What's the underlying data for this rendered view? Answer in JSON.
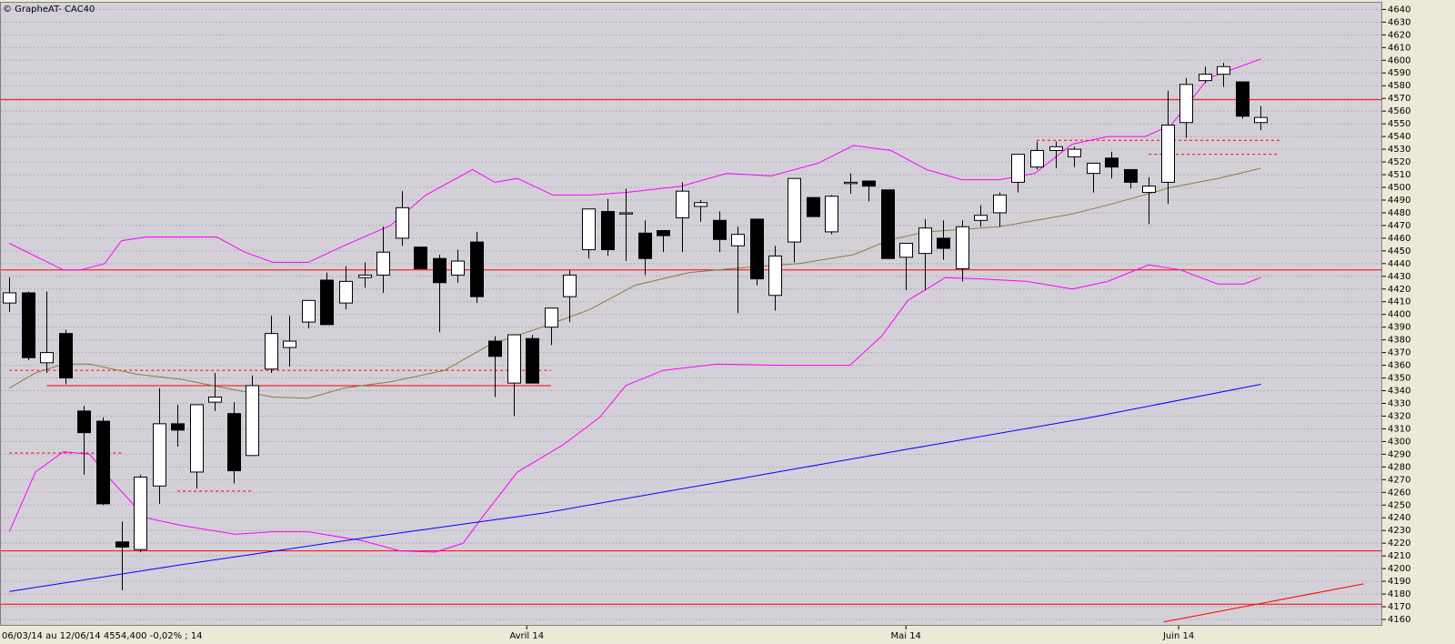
{
  "chart_data": {
    "type": "candlestick",
    "title": "© GrapheAT- CAC40",
    "footer": "06/03/14 au 12/06/14  4554,400  -0,02% ; 14",
    "ylim": [
      4155,
      4646
    ],
    "xlim": [
      -0.5,
      73.5
    ],
    "yticks": [
      4160,
      4170,
      4180,
      4190,
      4200,
      4210,
      4220,
      4230,
      4240,
      4250,
      4260,
      4270,
      4280,
      4290,
      4300,
      4310,
      4320,
      4330,
      4340,
      4350,
      4360,
      4370,
      4380,
      4390,
      4400,
      4410,
      4420,
      4430,
      4440,
      4450,
      4460,
      4470,
      4480,
      4490,
      4500,
      4510,
      4520,
      4530,
      4540,
      4550,
      4560,
      4570,
      4580,
      4590,
      4600,
      4610,
      4620,
      4630,
      4640
    ],
    "xticks": [
      {
        "value": 27.7,
        "label": "Avril 14"
      },
      {
        "value": 48,
        "label": "Mai 14"
      },
      {
        "value": 62.6,
        "label": "Juin 14"
      }
    ],
    "grid": true,
    "up_color": "#ffffff",
    "down_color": "#000000",
    "open": [
      4409,
      4417,
      4362,
      4385,
      4324,
      4316,
      4221,
      4215,
      4265,
      4314,
      4276,
      4331,
      4322,
      4289,
      4357,
      4374,
      4394,
      4427,
      4409,
      4429,
      4431,
      4460,
      4453,
      4444,
      4431,
      4457,
      4379,
      4346,
      4381,
      4390,
      4414,
      4451,
      4481,
      4479,
      4464,
      4466,
      4476,
      4485,
      4474,
      4454,
      4475,
      4415,
      4457,
      4492,
      4465,
      4503,
      4505,
      4498,
      4445,
      4448,
      4460,
      4436,
      4474,
      4480,
      4504,
      4516,
      4529,
      4524,
      4511,
      4523,
      4514,
      4496,
      4504,
      4551,
      4584,
      4589,
      4583,
      4551
    ],
    "high": [
      4429,
      4418,
      4418,
      4388,
      4328,
      4319,
      4237,
      4274,
      4342,
      4329,
      4329,
      4354,
      4331,
      4352,
      4399,
      4399,
      4411,
      4433,
      4438,
      4441,
      4469,
      4497,
      4453,
      4447,
      4451,
      4465,
      4383,
      4384,
      4384,
      4405,
      4435,
      4483,
      4491,
      4499,
      4474,
      4466,
      4504,
      4490,
      4481,
      4469,
      4475,
      4454,
      4507,
      4492,
      4494,
      4511,
      4505,
      4498,
      4456,
      4475,
      4474,
      4474,
      4486,
      4496,
      4526,
      4536,
      4536,
      4532,
      4519,
      4528,
      4514,
      4508,
      4576,
      4586,
      4595,
      4598,
      4583,
      4564
    ],
    "low": [
      4402,
      4364,
      4354,
      4345,
      4274,
      4250,
      4183,
      4213,
      4251,
      4296,
      4263,
      4324,
      4267,
      4289,
      4354,
      4359,
      4389,
      4392,
      4404,
      4421,
      4417,
      4454,
      4436,
      4386,
      4425,
      4409,
      4335,
      4320,
      4346,
      4376,
      4394,
      4444,
      4446,
      4442,
      4431,
      4449,
      4449,
      4473,
      4449,
      4401,
      4423,
      4403,
      4441,
      4477,
      4463,
      4495,
      4489,
      4444,
      4419,
      4419,
      4443,
      4426,
      4469,
      4469,
      4496,
      4514,
      4515,
      4516,
      4496,
      4507,
      4499,
      4471,
      4487,
      4539,
      4582,
      4579,
      4554,
      4545
    ],
    "close": [
      4417,
      4366,
      4370,
      4350,
      4307,
      4251,
      4217,
      4272,
      4314,
      4309,
      4329,
      4335,
      4277,
      4344,
      4385,
      4379,
      4411,
      4392,
      4426,
      4431,
      4449,
      4484,
      4436,
      4425,
      4442,
      4414,
      4367,
      4384,
      4346,
      4405,
      4431,
      4483,
      4451,
      4480,
      4444,
      4462,
      4497,
      4488,
      4459,
      4463,
      4428,
      4446,
      4507,
      4477,
      4493,
      4504,
      4501,
      4444,
      4456,
      4468,
      4452,
      4469,
      4478,
      4494,
      4526,
      4529,
      4532,
      4530,
      4519,
      4516,
      4504,
      4501,
      4549,
      4581,
      4589,
      4595,
      4556,
      4555
    ],
    "levels": [
      {
        "value": 4569,
        "color": "#ff0000"
      },
      {
        "value": 4435,
        "color": "#ff0000"
      },
      {
        "value": 4214,
        "color": "#ff0000"
      },
      {
        "value": 4172,
        "color": "#ff0000"
      },
      {
        "value": 4344,
        "color": "#ff0000",
        "x": [
          2,
          29
        ]
      },
      {
        "value": 4356,
        "color": "#ff0000",
        "x": [
          0,
          29
        ],
        "dashed": true
      },
      {
        "value": 4291,
        "color": "#ff0000",
        "x": [
          0,
          6
        ],
        "dashed": true
      },
      {
        "value": 4261,
        "color": "#ff0000",
        "x": [
          9,
          13
        ],
        "dashed": true
      },
      {
        "value": 4537,
        "color": "#ff0000",
        "x": [
          55,
          68
        ],
        "dashed": true
      },
      {
        "value": 4526,
        "color": "#ff0000",
        "x": [
          61,
          68
        ],
        "dashed": true
      }
    ],
    "overlays": [
      {
        "color": "#ff00ff",
        "x": [
          0,
          2.9,
          3.8,
          5.1,
          6,
          7.3,
          11.1,
          12.6,
          14.1,
          16,
          17.9,
          20.4,
          22.3,
          24.8,
          26,
          27.2,
          29.1,
          31.1,
          33,
          36,
          38.4,
          40.8,
          43.3,
          45.2,
          47.2,
          49.1,
          51,
          53,
          54.9,
          56.9,
          58.8,
          60.8,
          62.2,
          64.2,
          67
        ],
        "values": [
          4456,
          4435,
          4435,
          4440,
          4458,
          4461,
          4461,
          4449,
          4441,
          4441,
          4454,
          4470,
          4494,
          4514,
          4504,
          4507,
          4494,
          4494,
          4496,
          4501,
          4511,
          4509,
          4519,
          4533,
          4529,
          4514,
          4506,
          4506,
          4511,
          4534,
          4540,
          4540,
          4549,
          4586,
          4601
        ]
      },
      {
        "color": "#ff00ff",
        "x": [
          0,
          1.4,
          2.9,
          4.3,
          5.3,
          7.3,
          9.2,
          12.1,
          14.1,
          16,
          18.9,
          20.9,
          22.8,
          24.3,
          25.3,
          27.2,
          29.6,
          31.6,
          33,
          35,
          37.9,
          41.3,
          45,
          46.7,
          48.1,
          50.1,
          52,
          54.5,
          56.9,
          58.8,
          61,
          62.7,
          64.7,
          66.1,
          67
        ],
        "values": [
          4229,
          4276,
          4292,
          4290,
          4272,
          4240,
          4234,
          4227,
          4229,
          4229,
          4222,
          4214,
          4213,
          4220,
          4240,
          4276,
          4297,
          4319,
          4344,
          4356,
          4361,
          4360,
          4360,
          4383,
          4411,
          4429,
          4428,
          4426,
          4420,
          4426,
          4439,
          4435,
          4424,
          4424,
          4429
        ]
      },
      {
        "color": "#808040",
        "x": [
          0,
          1.4,
          2.9,
          4.3,
          6.8,
          9.2,
          11.6,
          14.1,
          16,
          17.9,
          20.4,
          23.3,
          25.7,
          28.7,
          31.1,
          33.5,
          36.4,
          39.4,
          42.3,
          45.2,
          47.2,
          49.1,
          53,
          56.9,
          59.3,
          62.2,
          64.7,
          67
        ],
        "values": [
          4342,
          4354,
          4361,
          4361,
          4353,
          4349,
          4342,
          4335,
          4334,
          4342,
          4347,
          4356,
          4376,
          4391,
          4404,
          4423,
          4433,
          4437,
          4440,
          4447,
          4459,
          4465,
          4469,
          4479,
          4488,
          4500,
          4507,
          4515
        ]
      },
      {
        "color": "#0000ff",
        "x": [
          0,
          9.2,
          18.9,
          28.7,
          38.4,
          48.1,
          57.9,
          67
        ],
        "values": [
          4182,
          4203,
          4224,
          4244,
          4269,
          4294,
          4319,
          4345
        ]
      },
      {
        "color": "#ff0000",
        "x": [
          61.8,
          72.5
        ],
        "values": [
          4158,
          4188
        ]
      }
    ]
  }
}
